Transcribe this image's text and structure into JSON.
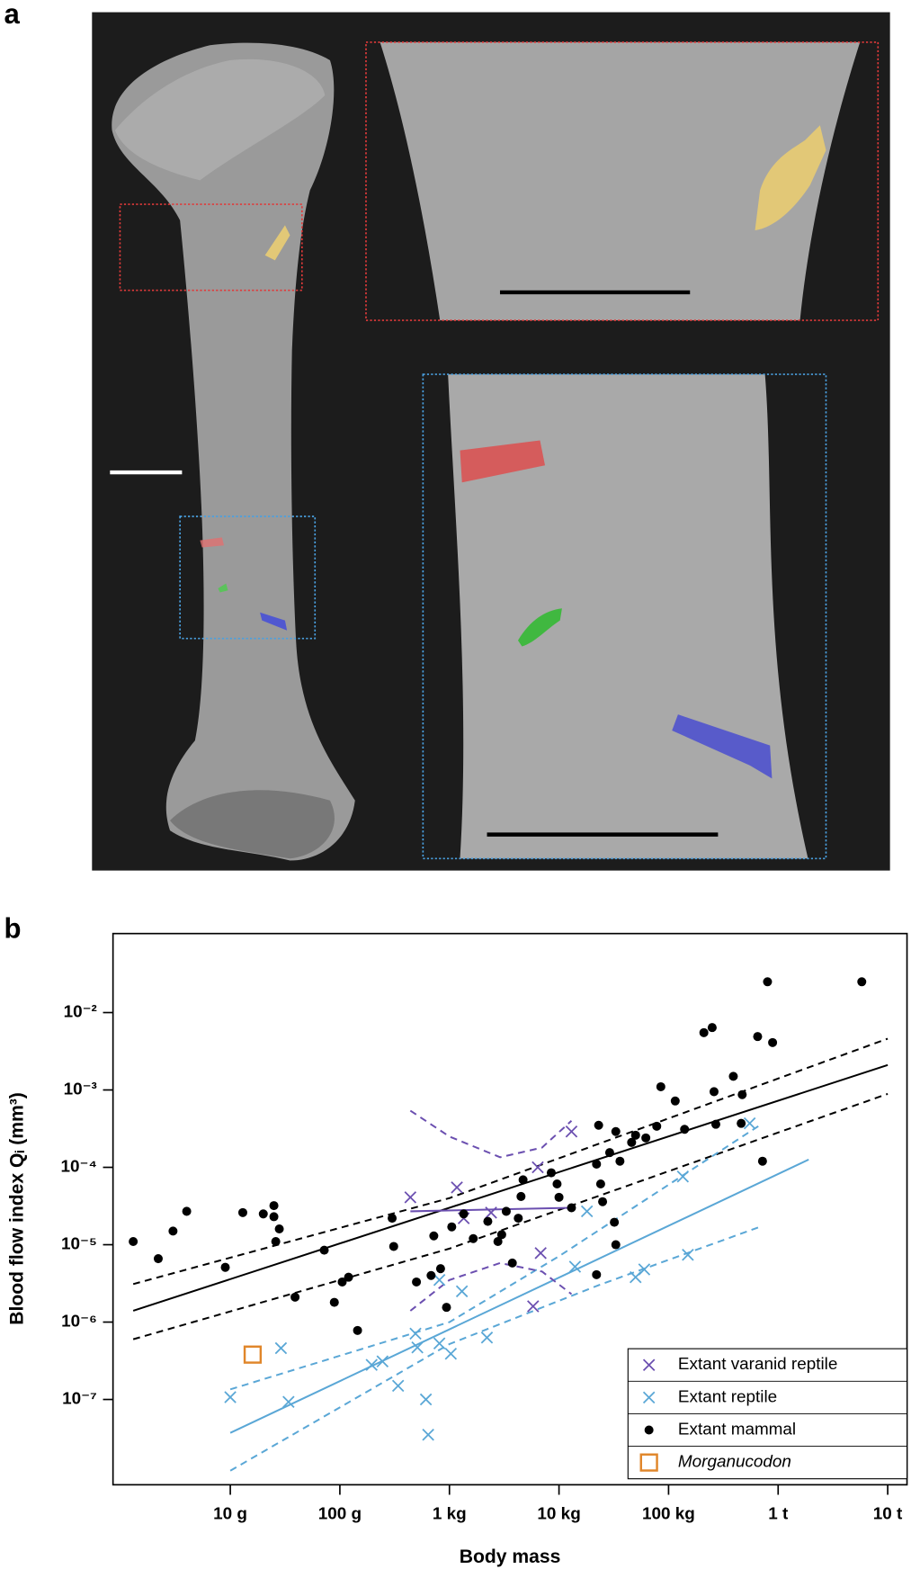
{
  "panel_a_label": "a",
  "chart_data": {
    "type": "scatter",
    "panel_label": "b",
    "xlabel": "Body mass",
    "ylabel": "Blood flow index Qᵢ (mm³)",
    "xscale": "log",
    "yscale": "log",
    "xlim": [
      0.85,
      15000000
    ],
    "ylim": [
      7.9e-09,
      0.105
    ],
    "xticks": [
      {
        "value": 10,
        "label": "10 g"
      },
      {
        "value": 100,
        "label": "100 g"
      },
      {
        "value": 1000,
        "label": "1 kg"
      },
      {
        "value": 10000,
        "label": "10 kg"
      },
      {
        "value": 100000,
        "label": "100 kg"
      },
      {
        "value": 1000000,
        "label": "1 t"
      },
      {
        "value": 10000000,
        "label": "10 t"
      }
    ],
    "yticks": [
      {
        "value": 1e-07,
        "label": "10⁻⁷"
      },
      {
        "value": 1e-06,
        "label": "10⁻⁶"
      },
      {
        "value": 1e-05,
        "label": "10⁻⁵"
      },
      {
        "value": 0.0001,
        "label": "10⁻⁴"
      },
      {
        "value": 0.001,
        "label": "10⁻³"
      },
      {
        "value": 0.01,
        "label": "10⁻²"
      }
    ],
    "legend": "lower right",
    "series": [
      {
        "name": "Extant varanid reptile",
        "color": "#6b4fb0",
        "marker": "x",
        "x": [
          440,
          1170,
          1350,
          2400,
          6400,
          6800,
          5800,
          13000
        ],
        "values": [
          4.1e-05,
          5.5e-05,
          2.2e-05,
          2.6e-05,
          0.0001,
          7.8e-06,
          1.6e-06,
          0.00029
        ]
      },
      {
        "name": "Extant reptile",
        "color": "#5aa7d6",
        "marker": "x",
        "x": [
          10,
          29,
          34,
          195,
          245,
          340,
          490,
          510,
          610,
          640,
          810,
          810,
          1030,
          1300,
          2200,
          14000,
          18000,
          50000,
          60000,
          135000,
          150000,
          550000
        ],
        "values": [
          1.07e-07,
          4.6e-07,
          9.3e-08,
          2.8e-07,
          3.1e-07,
          1.5e-07,
          7.1e-07,
          4.7e-07,
          1e-07,
          3.5e-08,
          3.5e-06,
          5.3e-07,
          3.9e-07,
          2.5e-06,
          6.3e-07,
          5.2e-06,
          2.7e-05,
          3.8e-06,
          4.8e-06,
          7.6e-05,
          7.4e-06,
          0.00037
        ]
      },
      {
        "name": "Extant mammal",
        "color": "#000000",
        "marker": "o",
        "x": [
          1.3,
          2.2,
          3,
          4,
          9,
          13,
          20,
          25,
          25,
          26,
          28,
          39,
          72,
          89,
          105,
          120,
          145,
          300,
          310,
          500,
          680,
          830,
          720,
          940,
          1050,
          1350,
          1650,
          2240,
          2770,
          3000,
          3300,
          3750,
          4250,
          4500,
          4700,
          8500,
          9600,
          10000,
          13000,
          22000,
          23000,
          24000,
          25000,
          22000,
          29000,
          33000,
          33000,
          32000,
          36000,
          46000,
          50000,
          62000,
          78000,
          85000,
          115000,
          140000,
          210000,
          250000,
          260000,
          270000,
          390000,
          460000,
          470000,
          650000,
          720000,
          800000,
          890000,
          5800000
        ],
        "values": [
          1.1e-05,
          6.6e-06,
          1.5e-05,
          2.7e-05,
          5.1e-06,
          2.6e-05,
          2.5e-05,
          3.2e-05,
          2.3e-05,
          1.1e-05,
          1.6e-05,
          2.1e-06,
          8.5e-06,
          1.8e-06,
          3.3e-06,
          3.8e-06,
          7.8e-07,
          2.2e-05,
          9.5e-06,
          3.3e-06,
          4e-06,
          4.9e-06,
          1.3e-05,
          1.55e-06,
          1.7e-05,
          2.5e-05,
          1.2e-05,
          2e-05,
          1.1e-05,
          1.35e-05,
          2.7e-05,
          5.8e-06,
          2.2e-05,
          4.2e-05,
          6.9e-05,
          8.5e-05,
          6.1e-05,
          4.1e-05,
          3e-05,
          0.00011,
          0.00035,
          6.1e-05,
          3.6e-05,
          4.1e-06,
          0.000155,
          1e-05,
          0.00029,
          1.95e-05,
          0.00012,
          0.00021,
          0.00026,
          0.00024,
          0.00034,
          0.0011,
          0.00072,
          0.00031,
          0.0055,
          0.0064,
          0.00095,
          0.00036,
          0.0015,
          0.00037,
          0.00087,
          0.0049,
          0.00012,
          0.025,
          0.0041,
          0.025
        ]
      },
      {
        "name": "Morganucodon",
        "color": "#e0862a",
        "marker": "square",
        "italic": true,
        "x": [
          16
        ],
        "values": [
          3.8e-07
        ]
      }
    ],
    "fits": [
      {
        "color": "#000000",
        "dash": false,
        "x": [
          1.3,
          10000000
        ],
        "y": [
          1.4e-06,
          0.0021
        ]
      },
      {
        "color": "#000000",
        "dash": true,
        "x": [
          1.3,
          1000,
          10000000
        ],
        "y": [
          3.1e-06,
          4e-05,
          0.0046
        ]
      },
      {
        "color": "#000000",
        "dash": true,
        "x": [
          1.3,
          1000,
          10000000
        ],
        "y": [
          6e-07,
          8.9e-06,
          0.00089
        ]
      },
      {
        "color": "#5aa7d6",
        "dash": false,
        "x": [
          10,
          1900000
        ],
        "y": [
          3.7e-08,
          0.000126
        ]
      },
      {
        "color": "#5aa7d6",
        "dash": true,
        "x": [
          10,
          1000,
          10000,
          680000
        ],
        "y": [
          1.35e-07,
          1e-06,
          7.1e-06,
          0.00035
        ]
      },
      {
        "color": "#5aa7d6",
        "dash": true,
        "x": [
          10,
          1000,
          23000,
          680000
        ],
        "y": [
          1.2e-08,
          5.2e-07,
          3e-06,
          1.7e-05
        ]
      },
      {
        "color": "#6b4fb0",
        "dash": false,
        "x": [
          440,
          13000
        ],
        "y": [
          2.7e-05,
          3e-05
        ]
      },
      {
        "color": "#6b4fb0",
        "dash": true,
        "x": [
          440,
          1000,
          2900,
          7000,
          13000
        ],
        "y": [
          0.00054,
          0.00025,
          0.000135,
          0.00018,
          0.0004
        ]
      },
      {
        "color": "#6b4fb0",
        "dash": true,
        "x": [
          440,
          1000,
          2900,
          7000,
          13000
        ],
        "y": [
          1.4e-06,
          3.5e-06,
          5.8e-06,
          4.5e-06,
          2.3e-06
        ]
      }
    ]
  }
}
